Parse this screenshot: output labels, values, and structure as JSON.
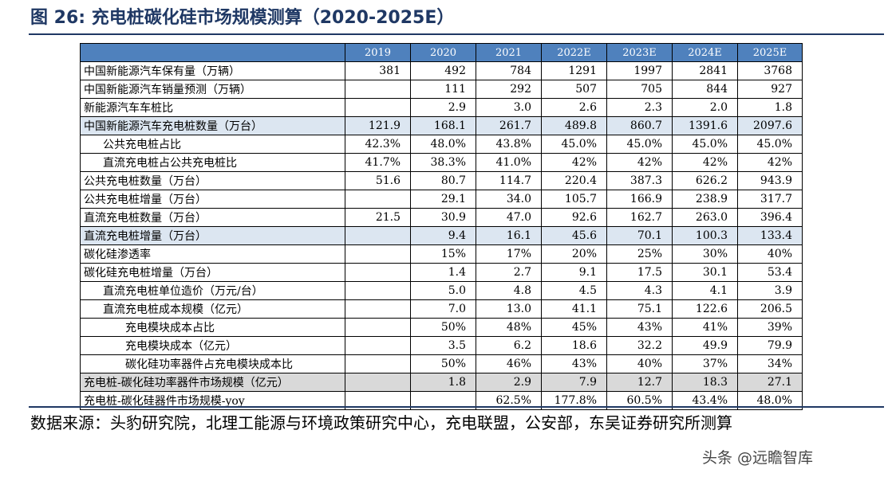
{
  "title": "图 26:  充电桩碳化硅市场规模测算（2020-2025E）",
  "table": {
    "header": [
      "",
      "2019",
      "2020",
      "2021",
      "2022E",
      "2023E",
      "2024E",
      "2025E"
    ],
    "rows": [
      {
        "label": "中国新能源汽车保有量（万辆）",
        "values": [
          "381",
          "492",
          "784",
          "1291",
          "1997",
          "2841",
          "3768"
        ],
        "indent": 0,
        "hl": ""
      },
      {
        "label": "中国新能源汽车销量预测（万辆）",
        "values": [
          "",
          "111",
          "292",
          "507",
          "705",
          "844",
          "927"
        ],
        "indent": 0,
        "hl": ""
      },
      {
        "label": "新能源汽车车桩比",
        "values": [
          "",
          "2.9",
          "3.0",
          "2.6",
          "2.3",
          "2.0",
          "1.8"
        ],
        "indent": 0,
        "hl": ""
      },
      {
        "label": "中国新能源汽车充电桩数量（万台）",
        "values": [
          "121.9",
          "168.1",
          "261.7",
          "489.8",
          "860.7",
          "1391.6",
          "2097.6"
        ],
        "indent": 0,
        "hl": "blue"
      },
      {
        "label": "公共充电桩占比",
        "values": [
          "42.3%",
          "48.0%",
          "43.8%",
          "45.0%",
          "45.0%",
          "45.0%",
          "45.0%"
        ],
        "indent": 1,
        "hl": ""
      },
      {
        "label": "直流充电桩占公共充电桩比",
        "values": [
          "41.7%",
          "38.3%",
          "41.0%",
          "42%",
          "42%",
          "42%",
          "42%"
        ],
        "indent": 1,
        "hl": ""
      },
      {
        "label": "公共充电桩数量（万台）",
        "values": [
          "51.6",
          "80.7",
          "114.7",
          "220.4",
          "387.3",
          "626.2",
          "943.9"
        ],
        "indent": 0,
        "hl": ""
      },
      {
        "label": "公共充电桩增量（万台）",
        "values": [
          "",
          "29.1",
          "34.0",
          "105.7",
          "166.9",
          "238.9",
          "317.7"
        ],
        "indent": 0,
        "hl": ""
      },
      {
        "label": "直流充电桩数量（万台）",
        "values": [
          "21.5",
          "30.9",
          "47.0",
          "92.6",
          "162.7",
          "263.0",
          "396.4"
        ],
        "indent": 0,
        "hl": ""
      },
      {
        "label": "直流充电桩增量（万台）",
        "values": [
          "",
          "9.4",
          "16.1",
          "45.6",
          "70.1",
          "100.3",
          "133.4"
        ],
        "indent": 0,
        "hl": "blue"
      },
      {
        "label": "碳化硅渗透率",
        "values": [
          "",
          "15%",
          "17%",
          "20%",
          "25%",
          "30%",
          "40%"
        ],
        "indent": 0,
        "hl": ""
      },
      {
        "label": "碳化硅充电桩增量（万台）",
        "values": [
          "",
          "1.4",
          "2.7",
          "9.1",
          "17.5",
          "30.1",
          "53.4"
        ],
        "indent": 0,
        "hl": ""
      },
      {
        "label": "直流充电桩单位造价（万元/台）",
        "values": [
          "",
          "5.0",
          "4.8",
          "4.5",
          "4.3",
          "4.1",
          "3.9"
        ],
        "indent": 1,
        "hl": ""
      },
      {
        "label": "直流充电桩成本规模（亿元）",
        "values": [
          "",
          "7.0",
          "13.0",
          "41.1",
          "75.1",
          "122.6",
          "206.5"
        ],
        "indent": 1,
        "hl": ""
      },
      {
        "label": "充电模块成本占比",
        "values": [
          "",
          "50%",
          "48%",
          "45%",
          "43%",
          "41%",
          "39%"
        ],
        "indent": 2,
        "hl": ""
      },
      {
        "label": "充电模块成本（亿元）",
        "values": [
          "",
          "3.5",
          "6.2",
          "18.6",
          "32.2",
          "49.9",
          "79.9"
        ],
        "indent": 2,
        "hl": ""
      },
      {
        "label": "碳化硅功率器件占充电模块成本比",
        "values": [
          "",
          "50%",
          "46%",
          "43%",
          "40%",
          "37%",
          "34%"
        ],
        "indent": 2,
        "hl": ""
      },
      {
        "label": "充电桩-碳化硅功率器件市场规模（亿元）",
        "values": [
          "",
          "1.8",
          "2.9",
          "7.9",
          "12.7",
          "18.3",
          "27.1"
        ],
        "indent": 0,
        "hl": "gray"
      },
      {
        "label": "充电桩-碳化硅器件市场规模-yoy",
        "values": [
          "",
          "",
          "62.5%",
          "177.8%",
          "60.5%",
          "43.4%",
          "48.0%"
        ],
        "indent": 0,
        "hl": ""
      }
    ]
  },
  "source": "数据来源：头豹研究院，北理工能源与环境政策研究中心，充电联盟，公安部，东吴证券研究所测算",
  "watermark": "头条 @远瞻智库"
}
